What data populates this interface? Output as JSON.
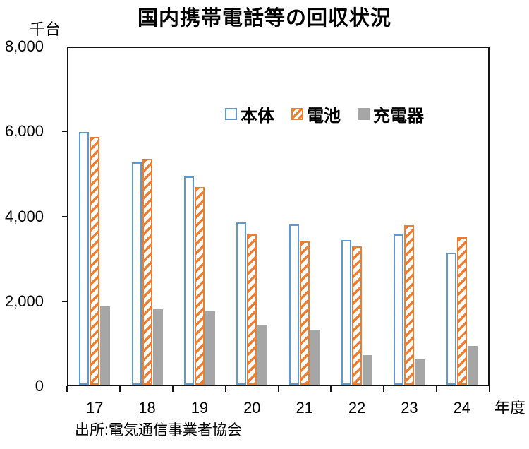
{
  "chart_data": {
    "type": "bar",
    "title": "国内携帯電話等の回収状況",
    "xlabel": "年度",
    "ylabel": "千台",
    "source": "出所:電気通信事業者協会",
    "categories": [
      "17",
      "18",
      "19",
      "20",
      "21",
      "22",
      "23",
      "24"
    ],
    "series": [
      {
        "name": "本体",
        "key": "handset",
        "style": "outline-blue",
        "values": [
          6000,
          5290,
          4940,
          3860,
          3810,
          3430,
          3580,
          3130
        ]
      },
      {
        "name": "電池",
        "key": "battery",
        "style": "hatch-orange",
        "values": [
          5890,
          5370,
          4690,
          3580,
          3410,
          3290,
          3790,
          3510
        ]
      },
      {
        "name": "充電器",
        "key": "charger",
        "style": "solid-gray",
        "values": [
          1860,
          1800,
          1750,
          1430,
          1310,
          700,
          600,
          930
        ]
      }
    ],
    "ylim": [
      0,
      8000
    ],
    "yticks": [
      0,
      2000,
      4000,
      6000,
      8000
    ],
    "grid": false,
    "legend_position": "top-inside"
  },
  "colors": {
    "blue": "#5B9BD5",
    "orange": "#ED7D31",
    "gray": "#A6A6A6",
    "axis": "#141414",
    "text": "#000000"
  }
}
